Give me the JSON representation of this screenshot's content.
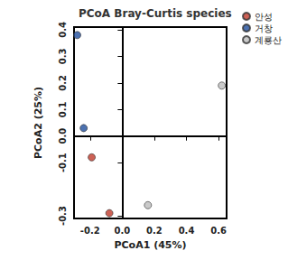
{
  "chart_data": {
    "type": "scatter",
    "title": "PCoA Bray-Curtis species",
    "x_label": "PCoA1 (45%)",
    "y_label": "PCoA2 (25%)",
    "series": [
      {
        "name": "안성",
        "color": "#c0392b",
        "x": [
          -0.19,
          -0.08
        ],
        "values": [
          -0.08,
          -0.29
        ]
      },
      {
        "name": "거창",
        "color": "#1f4e9c",
        "x": [
          -0.28,
          -0.24
        ],
        "values": [
          0.38,
          0.03
        ]
      },
      {
        "name": "계룡산",
        "color": "#bdbdbd",
        "x": [
          0.16,
          0.62
        ],
        "values": [
          -0.26,
          0.19
        ]
      }
    ],
    "xlim": [
      -0.3,
      0.65
    ],
    "xticks": [
      -0.2,
      {
        "value": 0,
        "label": "0.0"
      },
      0.2,
      0.4,
      0.6
    ],
    "ylim": [
      -0.31,
      0.41
    ],
    "yticks": [
      -0.3,
      -0.1,
      {
        "value": 0,
        "label": "0.0"
      },
      0.1,
      0.2,
      0.3,
      0.4
    ],
    "legend": "right",
    "grid": false,
    "marker": "circle"
  }
}
